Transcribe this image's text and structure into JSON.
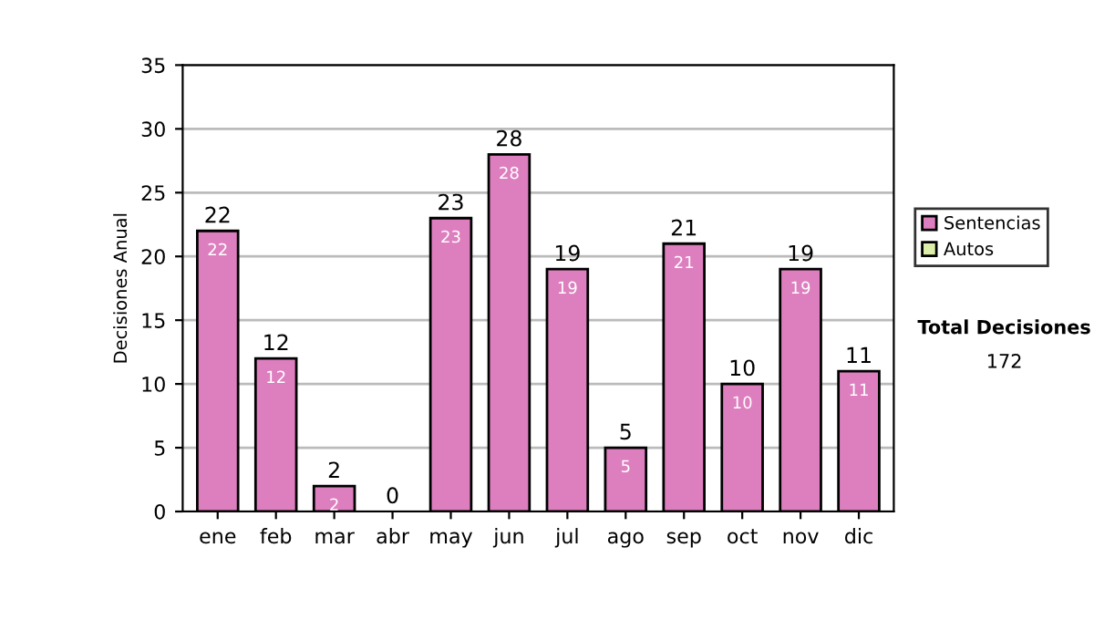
{
  "chart_data": {
    "type": "bar",
    "stacked": true,
    "ylabel": "Decisiones Anual",
    "categories": [
      "ene",
      "feb",
      "mar",
      "abr",
      "may",
      "jun",
      "jul",
      "ago",
      "sep",
      "oct",
      "nov",
      "dic"
    ],
    "series": [
      {
        "name": "Sentencias",
        "color": "#dd7fbf",
        "values": [
          22,
          12,
          2,
          0,
          23,
          28,
          19,
          5,
          21,
          10,
          19,
          11
        ],
        "value_labels": [
          "22",
          "12",
          "2",
          null,
          "23",
          "28",
          "19",
          "5",
          "21",
          "10",
          "19",
          "11"
        ]
      },
      {
        "name": "Autos",
        "color": "#ddeeaa",
        "values": [
          null,
          null,
          null,
          null,
          null,
          null,
          null,
          null,
          null,
          null,
          null,
          null
        ]
      }
    ],
    "totals": [
      "22",
      "12",
      "2",
      "0",
      "23",
      "28",
      "19",
      "5",
      "21",
      "10",
      "19",
      "11"
    ],
    "ylim": [
      0,
      35
    ],
    "yticks": [
      0,
      5,
      10,
      15,
      20,
      25,
      30,
      35
    ],
    "grid": "y",
    "legend": "right",
    "annotations": [
      "Total Decisiones",
      "172"
    ]
  }
}
